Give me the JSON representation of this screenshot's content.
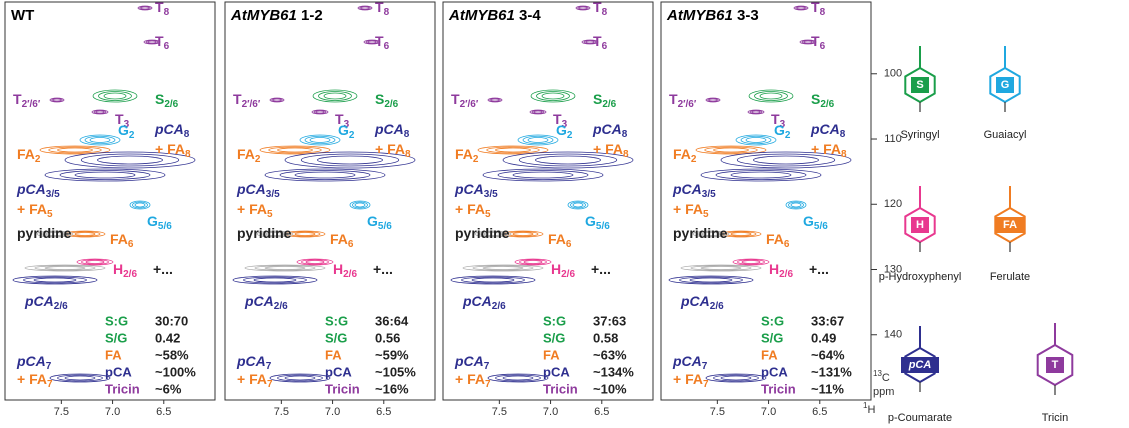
{
  "panels": [
    {
      "title": "WT",
      "ratios": [
        "30:70",
        "0.42",
        "~58%",
        "~100%",
        "~6%"
      ]
    },
    {
      "genotype": "AtMYB61",
      "line": "1-2",
      "ratios": [
        "36:64",
        "0.56",
        "~59%",
        "~105%",
        "~16%"
      ]
    },
    {
      "genotype": "AtMYB61",
      "line": "3-4",
      "ratios": [
        "37:63",
        "0.58",
        "~63%",
        "~134%",
        "~10%"
      ]
    },
    {
      "genotype": "AtMYB61",
      "line": "3-3",
      "ratios": [
        "33:67",
        "0.49",
        "~64%",
        "~131%",
        "~11%"
      ]
    }
  ],
  "metrics": [
    {
      "label": "S:G",
      "color": "#1a9e4a"
    },
    {
      "label": "S/G",
      "color": "#1a9e4a"
    },
    {
      "label": "FA",
      "color": "#f07c22"
    },
    {
      "label": "pCA",
      "color": "#2e2f8f"
    },
    {
      "label": "Tricin",
      "color": "#8e3a9d"
    }
  ],
  "peak_labels": [
    {
      "base": "T",
      "sub": "8",
      "color": "#8e3a9d"
    },
    {
      "base": "T",
      "sub": "6",
      "color": "#8e3a9d"
    },
    {
      "base": "T",
      "sub": "2′/6′",
      "color": "#8e3a9d"
    },
    {
      "base": "S",
      "sub": "2/6",
      "color": "#1a9e4a"
    },
    {
      "base": "T",
      "sub": "3",
      "color": "#8e3a9d"
    },
    {
      "base": "G",
      "sub": "2",
      "color": "#1fa8e0"
    },
    {
      "base": "pCA",
      "sub": "8",
      "color": "#2e2f8f"
    },
    {
      "base": "+ FA",
      "sub": "8",
      "color": "#f07c22"
    },
    {
      "base": "FA",
      "sub": "2",
      "color": "#f07c22"
    },
    {
      "base": "pCA",
      "sub": "3/5",
      "color": "#2e2f8f"
    },
    {
      "base": "+ FA",
      "sub": "5",
      "color": "#f07c22"
    },
    {
      "base": "G",
      "sub": "5/6",
      "color": "#1fa8e0"
    },
    {
      "base": "pyridine",
      "sub": "",
      "color": "#222"
    },
    {
      "base": "FA",
      "sub": "6",
      "color": "#f07c22"
    },
    {
      "base": "H",
      "sub": "2/6",
      "color": "#e8388f"
    },
    {
      "base": "+...",
      "sub": "",
      "color": "#222"
    },
    {
      "base": "pCA",
      "sub": "2/6",
      "color": "#2e2f8f"
    },
    {
      "base": "pCA",
      "sub": "7",
      "color": "#2e2f8f"
    },
    {
      "base": "+ FA",
      "sub": "7",
      "color": "#f07c22"
    }
  ],
  "xlim": [
    8.05,
    6.0
  ],
  "xticks": [
    {
      "value": 7.5,
      "label": "7.5"
    },
    {
      "value": 7.0,
      "label": "7.0"
    },
    {
      "value": 6.5,
      "label": "6.5"
    }
  ],
  "ylim": [
    89,
    150
  ],
  "yticks": [
    100,
    110,
    120,
    130,
    140
  ],
  "x_label": {
    "sup": "1",
    "base": "H"
  },
  "y_label": {
    "sup": "13",
    "base": "C",
    "unit": "ppm"
  },
  "structures": [
    {
      "letter": "S",
      "name": "Syringyl",
      "color": "#1a9e4a"
    },
    {
      "letter": "G",
      "name": "Guaiacyl",
      "color": "#1fa8e0"
    },
    {
      "letter": "H",
      "name": "p-Hydroxyphenyl",
      "color": "#e8388f"
    },
    {
      "letter": "FA",
      "name": "Ferulate",
      "color": "#f07c22"
    },
    {
      "letter": "pCA",
      "name": "p-Coumarate",
      "color": "#2e2f8f"
    },
    {
      "letter": "T",
      "name": "Tricin",
      "color": "#8e3a9d"
    }
  ]
}
